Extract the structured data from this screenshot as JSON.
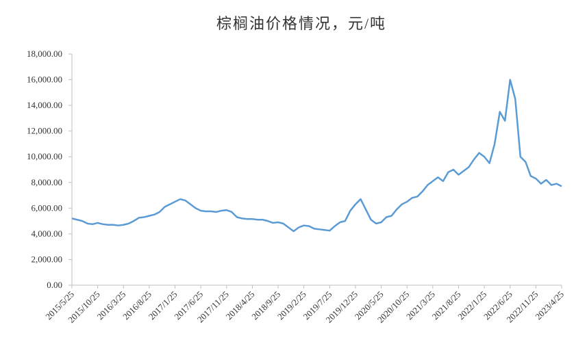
{
  "chart_data": {
    "type": "line",
    "title": "棕榈油价格情况，元/吨",
    "categories": [
      "2015/5/25",
      null,
      null,
      null,
      null,
      "2015/10/25",
      null,
      null,
      null,
      null,
      "2016/3/25",
      null,
      null,
      null,
      null,
      "2016/8/25",
      null,
      null,
      null,
      null,
      "2017/1/25",
      null,
      null,
      null,
      null,
      "2017/6/25",
      null,
      null,
      null,
      null,
      "2017/11/25",
      null,
      null,
      null,
      null,
      "2018/4/25",
      null,
      null,
      null,
      null,
      "2018/9/25",
      null,
      null,
      null,
      null,
      "2019/2/25",
      null,
      null,
      null,
      null,
      "2019/7/25",
      null,
      null,
      null,
      null,
      "2019/12/25",
      null,
      null,
      null,
      null,
      "2020/5/25",
      null,
      null,
      null,
      null,
      "2020/10/25",
      null,
      null,
      null,
      null,
      "2021/3/25",
      null,
      null,
      null,
      null,
      "2021/8/25",
      null,
      null,
      null,
      null,
      "2022/1/25",
      null,
      null,
      null,
      null,
      "2022/6/25",
      null,
      null,
      null,
      null,
      "2022/11/25",
      null,
      null,
      null,
      null,
      "2023/4/25"
    ],
    "series": [
      {
        "name": "棕榈油价格",
        "color": "#5b9bd5",
        "values": [
          5200,
          5100,
          5000,
          4800,
          4750,
          4850,
          4750,
          4700,
          4700,
          4650,
          4700,
          4800,
          5000,
          5250,
          5300,
          5400,
          5500,
          5700,
          6100,
          6300,
          6500,
          6700,
          6600,
          6300,
          6000,
          5800,
          5750,
          5750,
          5700,
          5800,
          5850,
          5700,
          5300,
          5200,
          5150,
          5150,
          5100,
          5100,
          5000,
          4850,
          4900,
          4800,
          4500,
          4200,
          4500,
          4650,
          4600,
          4400,
          4350,
          4300,
          4250,
          4600,
          4900,
          5000,
          5800,
          6300,
          6700,
          5900,
          5100,
          4800,
          4900,
          5300,
          5400,
          5900,
          6300,
          6500,
          6800,
          6900,
          7300,
          7800,
          8100,
          8400,
          8100,
          8800,
          9000,
          8600,
          8900,
          9200,
          9800,
          10300,
          10000,
          9500,
          11000,
          13500,
          12800,
          16000,
          14500,
          10000,
          9600,
          8500,
          8300,
          7900,
          8200,
          7800,
          7900,
          7700
        ]
      }
    ],
    "ylim": [
      0,
      18000
    ],
    "yticks": [
      {
        "value": 0,
        "label": "0.00"
      },
      {
        "value": 2000,
        "label": "2,000.00"
      },
      {
        "value": 4000,
        "label": "4,000.00"
      },
      {
        "value": 6000,
        "label": "6,000.00"
      },
      {
        "value": 8000,
        "label": "8,000.00"
      },
      {
        "value": 10000,
        "label": "10,000.00"
      },
      {
        "value": 12000,
        "label": "12,000.00"
      },
      {
        "value": 14000,
        "label": "14,000.00"
      },
      {
        "value": 16000,
        "label": "16,000.00"
      },
      {
        "value": 18000,
        "label": "18,000.00"
      }
    ],
    "grid": false
  }
}
